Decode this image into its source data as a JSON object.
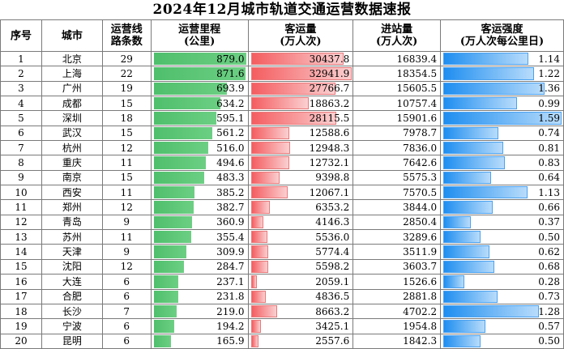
{
  "title": "2024年12月城市轨道交通运营数据速报",
  "headers": {
    "rank": "序号",
    "city": "城市",
    "lines_1": "运营线",
    "lines_2": "路条数",
    "mileage_1": "运营里程",
    "mileage_2": "(公里)",
    "volume_1": "客运量",
    "volume_2": "(万人次)",
    "entries_1": "进站量",
    "entries_2": "(万人次)",
    "intensity_1": "客运强度",
    "intensity_2": "(万人次每公里日)"
  },
  "colors": {
    "mileage_bar": "#4fbf6c",
    "volume_bar": "#f45d60",
    "intensity_bar": "#1e8ef0"
  },
  "bar_max": {
    "mileage": 879.0,
    "volume": 32941.9,
    "intensity": 1.59
  },
  "rows": [
    {
      "rank": "1",
      "city": "北京",
      "lines": "29",
      "mileage": "879.0",
      "volume": "30437.8",
      "entries": "16839.4",
      "intensity": "1.14"
    },
    {
      "rank": "2",
      "city": "上海",
      "lines": "22",
      "mileage": "871.6",
      "volume": "32941.9",
      "entries": "18354.5",
      "intensity": "1.22"
    },
    {
      "rank": "3",
      "city": "广州",
      "lines": "19",
      "mileage": "693.9",
      "volume": "27766.7",
      "entries": "15605.5",
      "intensity": "1.36"
    },
    {
      "rank": "4",
      "city": "成都",
      "lines": "15",
      "mileage": "634.2",
      "volume": "18863.2",
      "entries": "10757.4",
      "intensity": "0.99"
    },
    {
      "rank": "5",
      "city": "深圳",
      "lines": "18",
      "mileage": "595.1",
      "volume": "28115.5",
      "entries": "15901.6",
      "intensity": "1.59"
    },
    {
      "rank": "6",
      "city": "武汉",
      "lines": "15",
      "mileage": "561.2",
      "volume": "12588.6",
      "entries": "7978.7",
      "intensity": "0.74"
    },
    {
      "rank": "7",
      "city": "杭州",
      "lines": "12",
      "mileage": "516.0",
      "volume": "12948.3",
      "entries": "7836.0",
      "intensity": "0.81"
    },
    {
      "rank": "8",
      "city": "重庆",
      "lines": "11",
      "mileage": "494.6",
      "volume": "12732.1",
      "entries": "7642.6",
      "intensity": "0.83"
    },
    {
      "rank": "9",
      "city": "南京",
      "lines": "15",
      "mileage": "483.3",
      "volume": "9398.8",
      "entries": "5575.3",
      "intensity": "0.64"
    },
    {
      "rank": "10",
      "city": "西安",
      "lines": "11",
      "mileage": "385.2",
      "volume": "12067.1",
      "entries": "7570.5",
      "intensity": "1.13"
    },
    {
      "rank": "11",
      "city": "郑州",
      "lines": "12",
      "mileage": "382.7",
      "volume": "6353.2",
      "entries": "3844.0",
      "intensity": "0.66"
    },
    {
      "rank": "12",
      "city": "青岛",
      "lines": "9",
      "mileage": "360.9",
      "volume": "4146.3",
      "entries": "2850.4",
      "intensity": "0.37"
    },
    {
      "rank": "13",
      "city": "苏州",
      "lines": "11",
      "mileage": "355.4",
      "volume": "5536.0",
      "entries": "3289.6",
      "intensity": "0.50"
    },
    {
      "rank": "14",
      "city": "天津",
      "lines": "9",
      "mileage": "309.9",
      "volume": "5774.4",
      "entries": "3511.9",
      "intensity": "0.62"
    },
    {
      "rank": "15",
      "city": "沈阳",
      "lines": "12",
      "mileage": "284.7",
      "volume": "5598.2",
      "entries": "3603.7",
      "intensity": "0.68"
    },
    {
      "rank": "16",
      "city": "大连",
      "lines": "6",
      "mileage": "237.1",
      "volume": "2059.1",
      "entries": "1526.6",
      "intensity": "0.28"
    },
    {
      "rank": "17",
      "city": "合肥",
      "lines": "6",
      "mileage": "231.8",
      "volume": "4836.5",
      "entries": "2881.8",
      "intensity": "0.73"
    },
    {
      "rank": "18",
      "city": "长沙",
      "lines": "7",
      "mileage": "219.0",
      "volume": "8663.2",
      "entries": "4702.2",
      "intensity": "1.28"
    },
    {
      "rank": "19",
      "city": "宁波",
      "lines": "6",
      "mileage": "194.2",
      "volume": "3425.1",
      "entries": "1954.8",
      "intensity": "0.57"
    },
    {
      "rank": "20",
      "city": "昆明",
      "lines": "6",
      "mileage": "165.9",
      "volume": "2557.6",
      "entries": "1842.3",
      "intensity": "0.50"
    }
  ]
}
